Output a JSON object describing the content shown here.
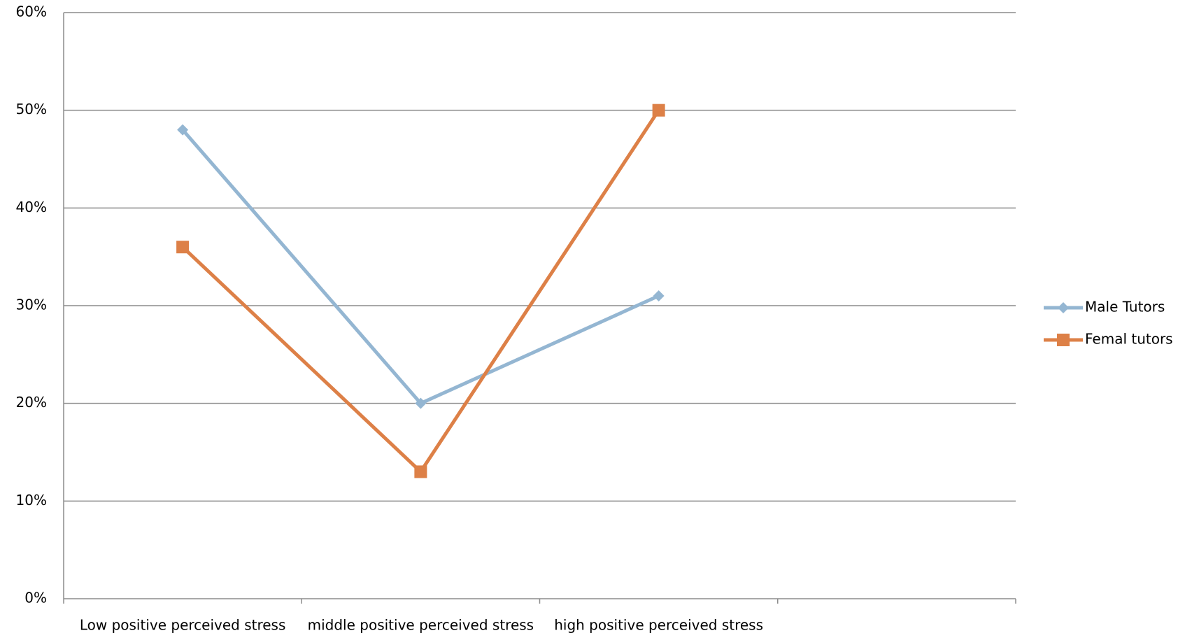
{
  "chart_data": {
    "type": "line",
    "categories": [
      "Low positive perceived stress",
      "middle positive perceived stress",
      "high positive perceived stress",
      null
    ],
    "series": [
      {
        "name": "Male Tutors",
        "color": "#94b6d2",
        "marker": "diamond",
        "values": [
          48,
          20,
          31,
          null
        ]
      },
      {
        "name": "Femal tutors",
        "color": "#dd8047",
        "marker": "square",
        "values": [
          36,
          13,
          50,
          null
        ]
      }
    ],
    "ylim": [
      0,
      60
    ],
    "yticks": [
      {
        "value": 0,
        "label": "0%"
      },
      {
        "value": 10,
        "label": "10%"
      },
      {
        "value": 20,
        "label": "20%"
      },
      {
        "value": 30,
        "label": "30%"
      },
      {
        "value": 40,
        "label": "40%"
      },
      {
        "value": 50,
        "label": "50%"
      },
      {
        "value": 60,
        "label": "60%"
      }
    ],
    "grid": true,
    "legend": "right"
  }
}
